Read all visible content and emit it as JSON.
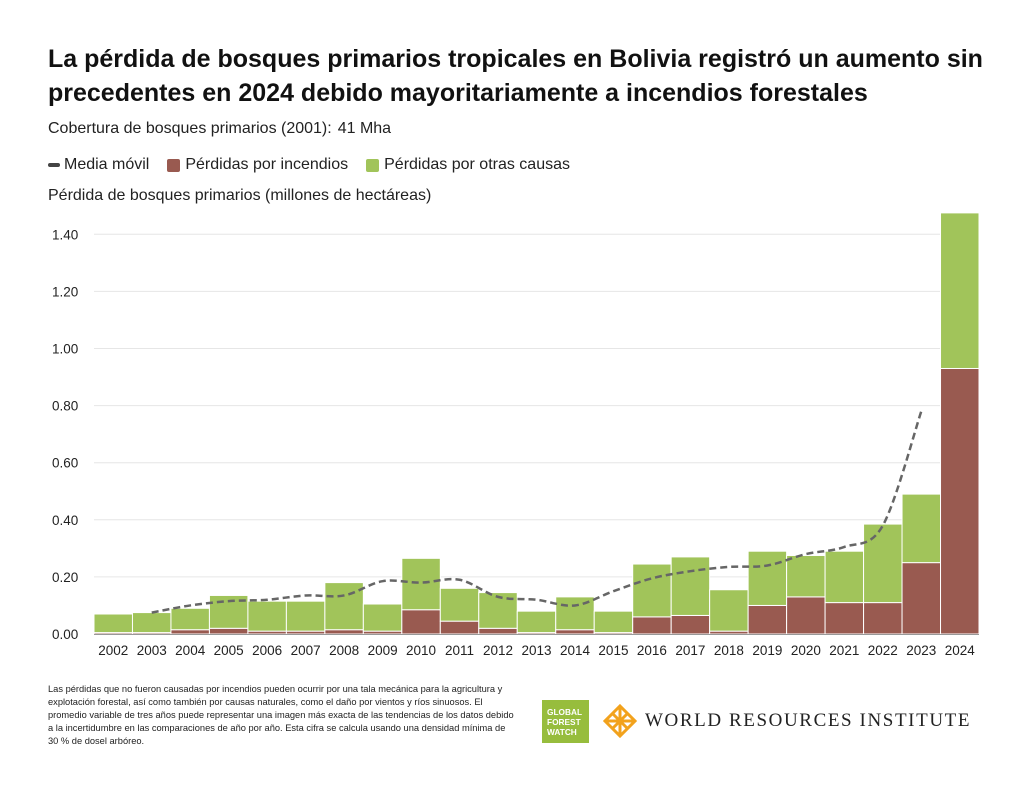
{
  "title": "La pérdida de bosques primarios tropicales en Bolivia registró un aumento sin precedentes en 2024 debido mayoritariamente a incendios forestales",
  "coverage": {
    "label": "Cobertura de bosques primarios (2001):",
    "value": "41 Mha"
  },
  "legend": {
    "moving_average": "Media móvil",
    "fire": "Pérdidas por incendios",
    "other": "Pérdidas por otras causas"
  },
  "colors": {
    "fire": "#995a50",
    "other": "#a1c45a",
    "moving_average": "#666666",
    "grid": "#e6e6e6",
    "logo_green": "#97bd3d",
    "logo_orange": "#f2a21c"
  },
  "footnote": "Las pérdidas que no fueron causadas por incendios pueden ocurrir por una tala mecánica para la agricultura y explotación forestal, así como también por causas naturales, como el daño por vientos y ríos sinuosos. El promedio variable de tres años puede representar una imagen más exacta de las tendencias de los datos debido a la incertidumbre en las comparaciones de año por año. Esta cifra se calcula usando una densidad mínima de 30 % de dosel arbóreo.",
  "logos": {
    "gfw": [
      "GLOBAL",
      "FOREST",
      "WATCH"
    ],
    "wri": "WORLD RESOURCES INSTITUTE"
  },
  "chart_data": {
    "type": "bar",
    "stacked": true,
    "ylabel": "Pérdida de bosques primarios (millones de hectáreas)",
    "xlabel": "",
    "ylim": [
      0,
      1.48
    ],
    "yticks": [
      "0.00",
      "0.20",
      "0.40",
      "0.60",
      "0.80",
      "1.00",
      "1.20",
      "1.40"
    ],
    "grid": true,
    "categories": [
      "2002",
      "2003",
      "2004",
      "2005",
      "2006",
      "2007",
      "2008",
      "2009",
      "2010",
      "2011",
      "2012",
      "2013",
      "2014",
      "2015",
      "2016",
      "2017",
      "2018",
      "2019",
      "2020",
      "2021",
      "2022",
      "2023",
      "2024"
    ],
    "series": [
      {
        "name": "Pérdidas por incendios",
        "values": [
          0.005,
          0.005,
          0.015,
          0.02,
          0.01,
          0.01,
          0.015,
          0.01,
          0.085,
          0.045,
          0.02,
          0.005,
          0.015,
          0.005,
          0.06,
          0.065,
          0.01,
          0.1,
          0.13,
          0.11,
          0.11,
          0.25,
          0.93
        ]
      },
      {
        "name": "Pérdidas por otras causas",
        "values": [
          0.065,
          0.07,
          0.075,
          0.115,
          0.105,
          0.105,
          0.165,
          0.095,
          0.18,
          0.115,
          0.125,
          0.075,
          0.115,
          0.075,
          0.185,
          0.205,
          0.145,
          0.19,
          0.145,
          0.18,
          0.275,
          0.24,
          0.545
        ]
      }
    ],
    "moving_average": {
      "name": "Media móvil",
      "x": [
        "2003",
        "2004",
        "2005",
        "2006",
        "2007",
        "2008",
        "2009",
        "2010",
        "2011",
        "2012",
        "2013",
        "2014",
        "2015",
        "2016",
        "2017",
        "2018",
        "2019",
        "2020",
        "2021",
        "2022",
        "2023"
      ],
      "values": [
        0.075,
        0.1,
        0.115,
        0.12,
        0.135,
        0.135,
        0.185,
        0.18,
        0.19,
        0.13,
        0.12,
        0.1,
        0.15,
        0.195,
        0.22,
        0.235,
        0.24,
        0.28,
        0.305,
        0.38,
        0.78
      ]
    }
  }
}
